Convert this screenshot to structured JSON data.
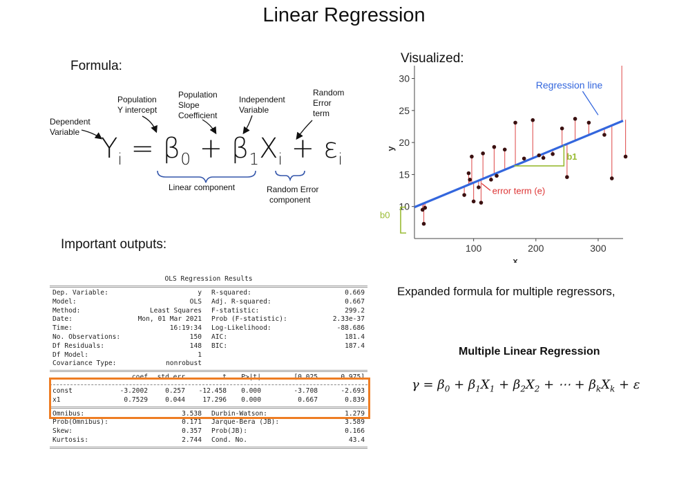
{
  "title": "Linear Regression",
  "formula": {
    "heading": "Formula:",
    "labels": {
      "dependent": [
        "Dependent",
        "Variable"
      ],
      "intercept": [
        "Population",
        "Y  intercept"
      ],
      "slope": [
        "Population",
        "Slope",
        "Coefficient"
      ],
      "independent": [
        "Independent",
        "Variable"
      ],
      "error": [
        "Random",
        "Error",
        "term"
      ]
    },
    "linear_component": "Linear component",
    "random_component": [
      "Random Error",
      "component"
    ]
  },
  "visualized": {
    "heading": "Visualized:",
    "regression_label": "Regression line",
    "error_label": "error term (e)",
    "b1_label": "b1",
    "b0_label": "b0",
    "colors": {
      "line": "#3366dd",
      "residual": "#e05555",
      "green": "#99bb33",
      "error_text": "#dd3333",
      "line_label": "#3366dd"
    }
  },
  "outputs_heading": "Important outputs:",
  "ols": {
    "title": "OLS Regression Results",
    "left": [
      [
        "Dep. Variable:",
        "y"
      ],
      [
        "Model:",
        "OLS"
      ],
      [
        "Method:",
        "Least Squares"
      ],
      [
        "Date:",
        "Mon, 01 Mar 2021"
      ],
      [
        "Time:",
        "16:19:34"
      ],
      [
        "No. Observations:",
        "150"
      ],
      [
        "Df Residuals:",
        "148"
      ],
      [
        "Df Model:",
        "1"
      ],
      [
        "Covariance Type:",
        "nonrobust"
      ]
    ],
    "right": [
      [
        "R-squared:",
        "0.669"
      ],
      [
        "Adj. R-squared:",
        "0.667"
      ],
      [
        "F-statistic:",
        "299.2"
      ],
      [
        "Prob (F-statistic):",
        "2.33e-37"
      ],
      [
        "Log-Likelihood:",
        "-88.686"
      ],
      [
        "AIC:",
        "181.4"
      ],
      [
        "BIC:",
        "187.4"
      ]
    ],
    "coef_header": [
      "",
      "coef",
      "std err",
      "t",
      "P>|t|",
      "[0.025",
      "0.975]"
    ],
    "coef_rows": [
      [
        "const",
        "-3.2002",
        "0.257",
        "-12.458",
        "0.000",
        "-3.708",
        "-2.693"
      ],
      [
        "x1",
        "0.7529",
        "0.044",
        "17.296",
        "0.000",
        "0.667",
        "0.839"
      ]
    ],
    "diag_left": [
      [
        "Omnibus:",
        "3.538"
      ],
      [
        "Prob(Omnibus):",
        "0.171"
      ],
      [
        "Skew:",
        "0.357"
      ],
      [
        "Kurtosis:",
        "2.744"
      ]
    ],
    "diag_right": [
      [
        "Durbin-Watson:",
        "1.279"
      ],
      [
        "Jarque-Bera (JB):",
        "3.589"
      ],
      [
        "Prob(JB):",
        "0.166"
      ],
      [
        "Cond. No.",
        "43.4"
      ]
    ],
    "highlight_color": "#ee7d23"
  },
  "expanded_text": "Expanded formula for multiple regressors,",
  "mlr_title": "Multiple Linear Regression",
  "chart_data": {
    "type": "scatter",
    "xlabel": "x",
    "ylabel": "y",
    "xlim": [
      5,
      340
    ],
    "ylim": [
      5,
      32
    ],
    "xticks": [
      100,
      200,
      300
    ],
    "yticks": [
      10,
      15,
      20,
      25,
      30
    ],
    "line": {
      "x0": 5,
      "y0": 9.9,
      "x1": 340,
      "y1": 23.4
    },
    "points": [
      [
        18,
        9.5
      ],
      [
        20,
        7.3
      ],
      [
        22,
        9.8
      ],
      [
        85,
        11.8
      ],
      [
        92,
        15.2
      ],
      [
        94,
        14.2
      ],
      [
        97,
        17.8
      ],
      [
        100,
        10.8
      ],
      [
        108,
        13.0
      ],
      [
        112,
        10.6
      ],
      [
        115,
        18.3
      ],
      [
        128,
        14.2
      ],
      [
        133,
        19.3
      ],
      [
        137,
        14.8
      ],
      [
        150,
        18.9
      ],
      [
        167,
        23.1
      ],
      [
        181,
        17.5
      ],
      [
        195,
        23.5
      ],
      [
        205,
        18.0
      ],
      [
        212,
        17.6
      ],
      [
        227,
        18.2
      ],
      [
        242,
        22.2
      ],
      [
        250,
        14.6
      ],
      [
        263,
        23.7
      ],
      [
        285,
        23.1
      ],
      [
        310,
        21.2
      ],
      [
        322,
        14.4
      ],
      [
        338,
        32.3
      ],
      [
        344,
        17.8
      ]
    ]
  }
}
